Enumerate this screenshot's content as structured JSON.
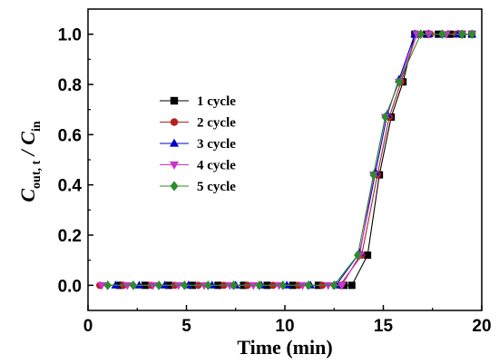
{
  "chart_data": {
    "type": "line",
    "xlabel": "Time (min)",
    "ylabel_main": "C",
    "ylabel_sub1": "out, t",
    "ylabel_slash": " / C",
    "ylabel_sub2": "in",
    "xlim": [
      0,
      20
    ],
    "ylim": [
      -0.1,
      1.1
    ],
    "xticks": [
      0,
      5,
      10,
      15,
      20
    ],
    "yticks": [
      0.0,
      0.2,
      0.4,
      0.6,
      0.8,
      1.0
    ],
    "xtick_labels": [
      "0",
      "5",
      "10",
      "15",
      "20"
    ],
    "ytick_labels": [
      "0.0",
      "0.2",
      "0.4",
      "0.6",
      "0.8",
      "1.0"
    ],
    "grid": false,
    "legend_position": "center-left",
    "series": [
      {
        "name": "1 cycle",
        "color": "#000000",
        "marker": "square",
        "x": [
          1.6,
          2.9,
          4.1,
          5.3,
          6.6,
          7.9,
          9.1,
          10.4,
          11.7,
          13.0,
          13.4,
          14.2,
          14.8,
          15.4,
          16.0,
          16.6,
          17.2,
          17.8,
          18.4,
          19.0,
          19.5
        ],
        "y": [
          0,
          0,
          0,
          0,
          0,
          0,
          0,
          0,
          0,
          0,
          0,
          0.12,
          0.44,
          0.67,
          0.81,
          1.0,
          1.0,
          1.0,
          1.0,
          1.0,
          1.0
        ]
      },
      {
        "name": "2 cycle",
        "color": "#b22222",
        "marker": "circle",
        "x": [
          0.6,
          1.8,
          3.2,
          4.4,
          5.6,
          6.9,
          8.1,
          9.4,
          10.7,
          11.9,
          12.8,
          13.9,
          14.7,
          15.3,
          15.9,
          16.7,
          17.4,
          18.0,
          18.7,
          19.5
        ],
        "y": [
          0,
          0,
          0,
          0,
          0,
          0,
          0,
          0,
          0,
          0,
          0,
          0.12,
          0.44,
          0.67,
          0.81,
          1.0,
          1.0,
          1.0,
          1.0,
          1.0
        ]
      },
      {
        "name": "3 cycle",
        "color": "#0000cd",
        "marker": "triangle-up",
        "x": [
          1.4,
          2.6,
          3.9,
          5.1,
          6.3,
          7.5,
          8.8,
          10.1,
          11.3,
          12.6,
          13.8,
          14.6,
          15.2,
          15.8,
          16.6,
          17.3,
          18.0,
          18.8,
          19.5
        ],
        "y": [
          0,
          0,
          0,
          0,
          0,
          0,
          0,
          0,
          0,
          0,
          0.13,
          0.45,
          0.68,
          0.82,
          1.0,
          1.0,
          1.0,
          1.0,
          1.0
        ]
      },
      {
        "name": "4 cycle",
        "color": "#cc33cc",
        "marker": "triangle-down",
        "x": [
          0.7,
          2.0,
          3.3,
          4.6,
          5.9,
          7.2,
          8.4,
          9.7,
          10.9,
          12.2,
          12.9,
          13.8,
          14.5,
          15.1,
          15.8,
          16.7,
          17.3,
          18.2,
          19.0,
          19.5
        ],
        "y": [
          0,
          0,
          0,
          0,
          0,
          0,
          0,
          0,
          0,
          0,
          0,
          0.12,
          0.44,
          0.67,
          0.81,
          1.0,
          1.0,
          1.0,
          1.0,
          1.0
        ]
      },
      {
        "name": "5 cycle",
        "color": "#2e8b2e",
        "marker": "diamond",
        "x": [
          1.0,
          2.3,
          3.6,
          4.9,
          6.1,
          7.4,
          8.7,
          9.9,
          11.2,
          12.5,
          13.7,
          14.5,
          15.1,
          15.8,
          16.9,
          18.0,
          19.0,
          19.5
        ],
        "y": [
          0,
          0,
          0,
          0,
          0,
          0,
          0,
          0,
          0,
          0,
          0.12,
          0.44,
          0.67,
          0.81,
          1.0,
          1.0,
          1.0,
          1.0
        ]
      }
    ]
  }
}
